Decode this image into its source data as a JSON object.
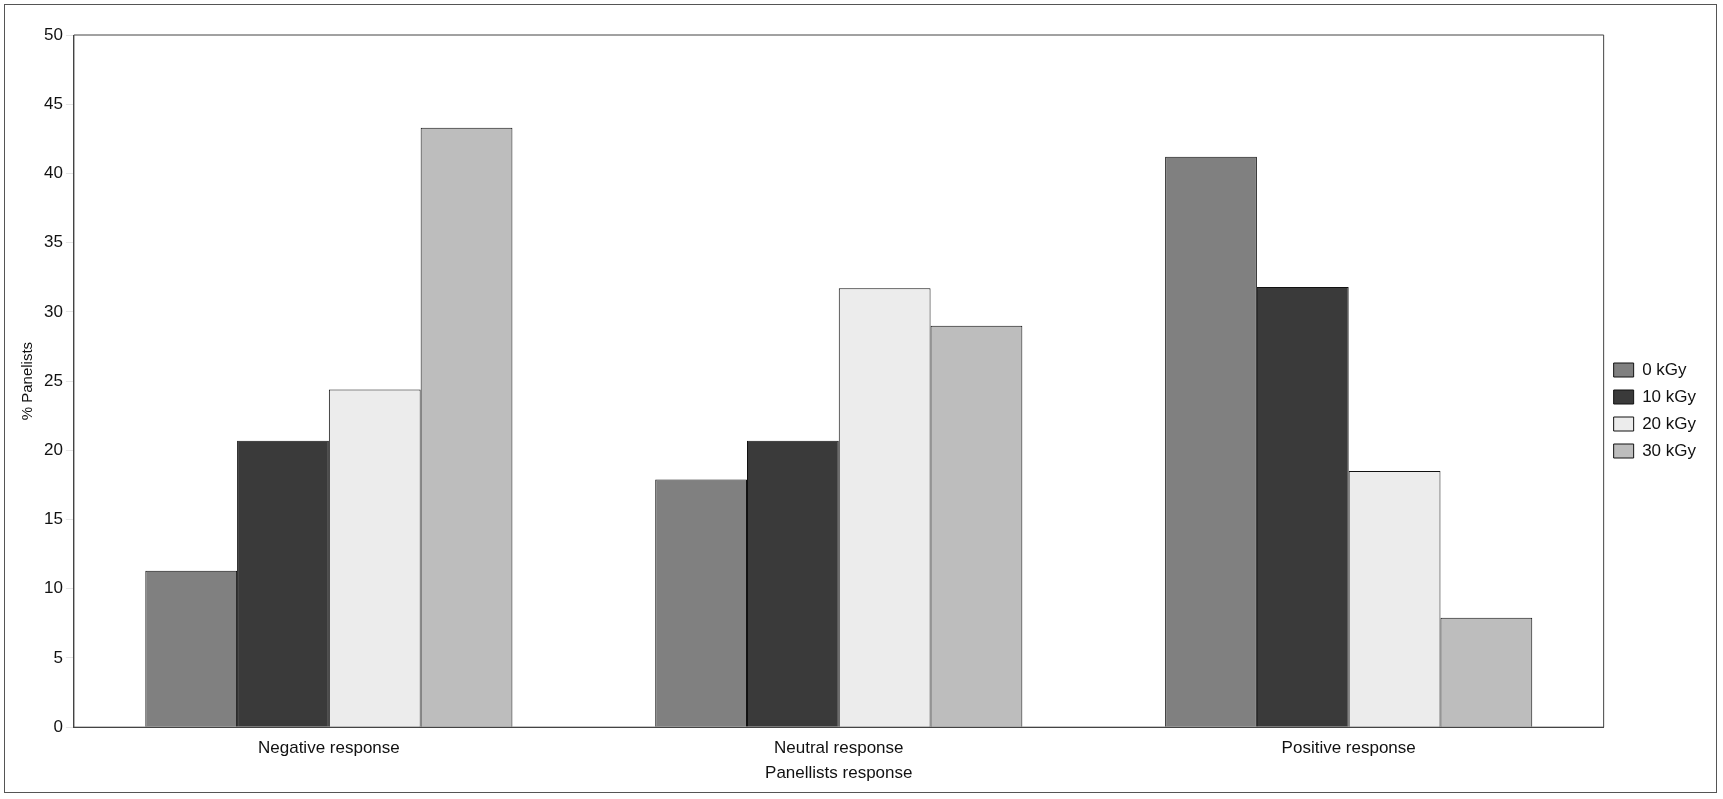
{
  "chart_data": {
    "type": "bar",
    "xlabel": "Panellists response",
    "ylabel": "% Panelists",
    "categories": [
      "Negative response",
      "Neutral response",
      "Positive response"
    ],
    "series": [
      {
        "name": "0 kGy",
        "color": "#808080",
        "values": [
          11.3,
          17.9,
          41.2
        ]
      },
      {
        "name": "10 kGy",
        "color": "#3a3a3a",
        "values": [
          20.7,
          20.7,
          31.8
        ]
      },
      {
        "name": "20 kGy",
        "color": "#ececec",
        "values": [
          24.4,
          31.7,
          18.5
        ]
      },
      {
        "name": "30 kGy",
        "color": "#bdbdbd",
        "values": [
          43.3,
          29.0,
          7.9
        ]
      }
    ],
    "ylim": [
      0,
      50
    ],
    "yticks": [
      0,
      5,
      10,
      15,
      20,
      25,
      30,
      35,
      40,
      45,
      50
    ],
    "grid": false,
    "legend": "right"
  }
}
